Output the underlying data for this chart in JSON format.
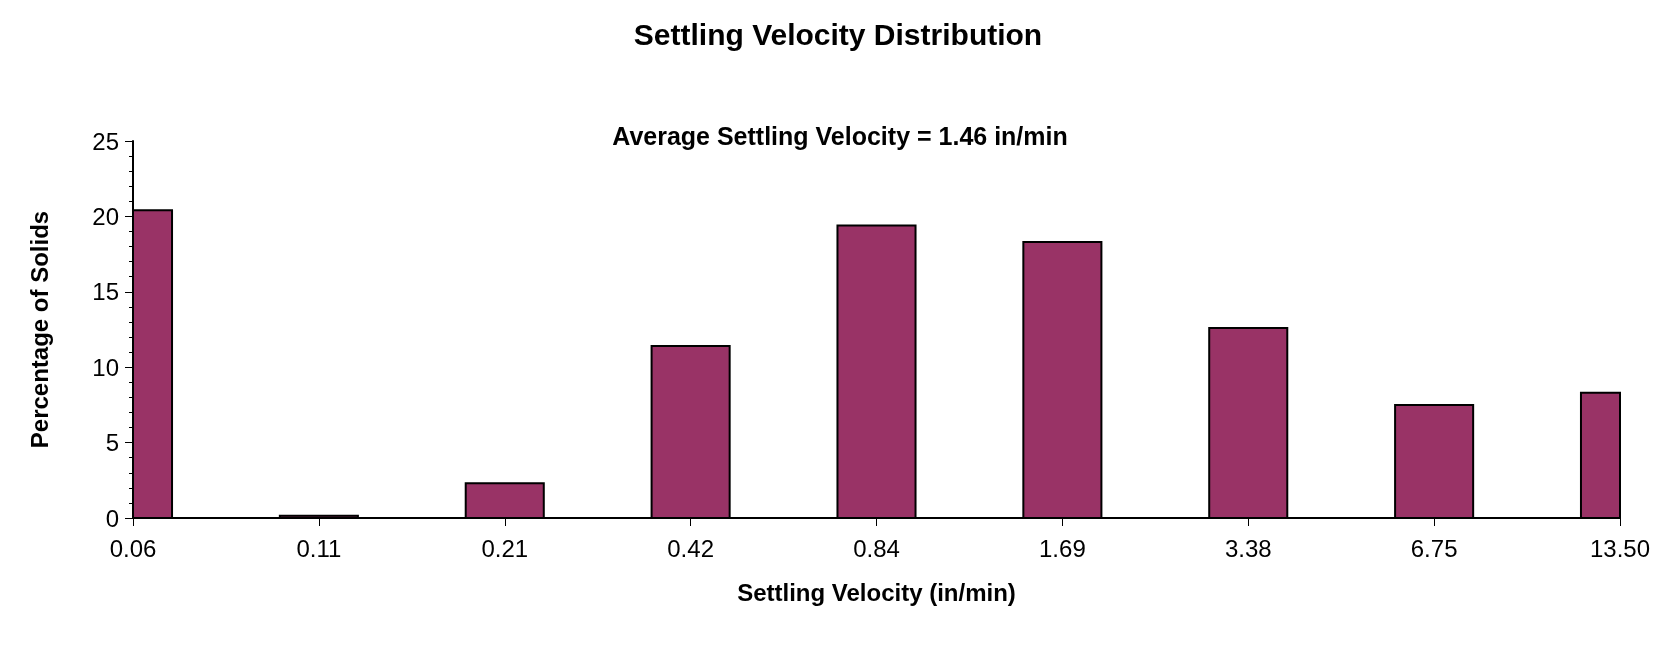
{
  "chart_data": {
    "type": "bar",
    "title": "Settling Velocity Distribution",
    "subtitle": "Average Settling Velocity = 1.46 in/min",
    "xlabel": "Settling Velocity (in/min)",
    "ylabel": "Percentage of Solids",
    "categories": [
      "0.06",
      "0.11",
      "0.21",
      "0.42",
      "0.84",
      "1.69",
      "3.38",
      "6.75",
      "13.50"
    ],
    "values": [
      20.4,
      0.15,
      2.3,
      11.4,
      19.4,
      18.3,
      12.6,
      7.5,
      8.3
    ],
    "color": "#993366",
    "ylim": [
      0,
      25
    ],
    "yticks": [
      0,
      5,
      10,
      15,
      20,
      25
    ],
    "grid": false
  }
}
